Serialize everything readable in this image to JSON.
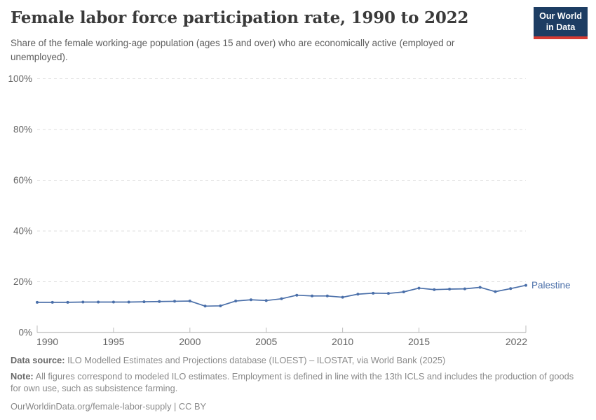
{
  "header": {
    "title": "Female labor force participation rate, 1990 to 2022",
    "subtitle": "Share of the female working-age population (ages 15 and over) who are economically active (employed or unemployed).",
    "logo": {
      "line1": "Our World",
      "line2": "in Data",
      "bg_color": "#1d3d63",
      "bar_color": "#d63b33"
    }
  },
  "chart_data": {
    "type": "line",
    "title": "Female labor force participation rate, 1990 to 2022",
    "xlabel": "",
    "ylabel": "",
    "xlim": [
      1990,
      2022
    ],
    "ylim": [
      0,
      100
    ],
    "grid": "horizontal-dashed",
    "legend_position": "end-of-line-label",
    "x_ticks": [
      1990,
      1995,
      2000,
      2005,
      2010,
      2015,
      2022
    ],
    "y_ticks": [
      0,
      20,
      40,
      60,
      80,
      100
    ],
    "y_tick_suffix": "%",
    "series": [
      {
        "name": "Palestine",
        "color": "#4a6fa9",
        "x": [
          1990,
          1991,
          1992,
          1993,
          1994,
          1995,
          1996,
          1997,
          1998,
          1999,
          2000,
          2001,
          2002,
          2003,
          2004,
          2005,
          2006,
          2007,
          2008,
          2009,
          2010,
          2011,
          2012,
          2013,
          2014,
          2015,
          2016,
          2017,
          2018,
          2019,
          2020,
          2021,
          2022
        ],
        "values": [
          11.9,
          11.9,
          11.9,
          12.0,
          12.0,
          12.0,
          12.0,
          12.1,
          12.2,
          12.3,
          12.4,
          10.4,
          10.5,
          12.4,
          12.9,
          12.6,
          13.3,
          14.7,
          14.4,
          14.4,
          13.9,
          15.1,
          15.5,
          15.4,
          16.0,
          17.5,
          16.9,
          17.1,
          17.2,
          17.8,
          16.1,
          17.3,
          18.6
        ]
      }
    ]
  },
  "footer": {
    "data_source_label": "Data source:",
    "data_source_text": "ILO Modelled Estimates and Projections database (ILOEST) – ILOSTAT, via World Bank (2025)",
    "note_label": "Note:",
    "note_text": "All figures correspond to modeled ILO estimates. Employment is defined in line with the 13th ICLS and includes the production of goods for own use, such as subsistence farming.",
    "citation": "OurWorldinData.org/female-labor-supply | CC BY"
  }
}
